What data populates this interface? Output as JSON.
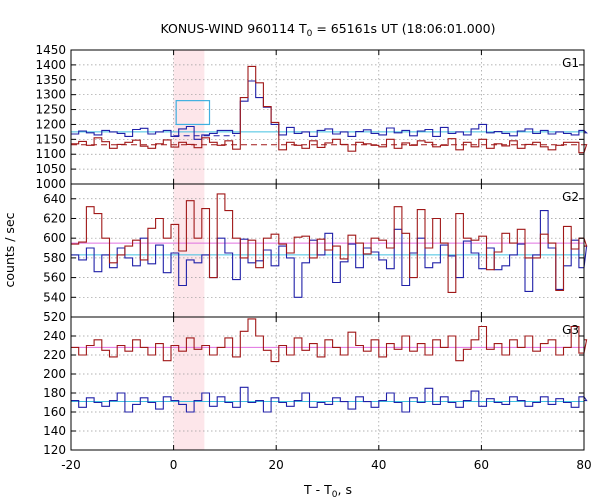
{
  "chart_data": {
    "type": "line",
    "title": {
      "text": "KONUS-WIND 960114 T",
      "sub": "0",
      "rest": " = 65161s UT (18:06:01.000)"
    },
    "xlabel": {
      "text": "T - T",
      "sub": "0",
      "rest": ", s"
    },
    "ylabel": "counts / sec",
    "xlim": [
      -20,
      80
    ],
    "xticks": [
      -20,
      0,
      20,
      40,
      60,
      80
    ],
    "highlight_interval": [
      0,
      6
    ],
    "highlight_color": "#fde6ea",
    "grid": true,
    "bin_width": 1.5,
    "x_start": -20,
    "colors": {
      "blue": "#2020a8",
      "red": "#a01818",
      "blue_fit": "#40c0e0",
      "pink_fit": "#e070e0",
      "dark_blue_fit": "#2020a8",
      "dark_red_fit": "#a01818",
      "box": "#40b0e0"
    },
    "panels": [
      {
        "label": "G1",
        "ylim": [
          1000,
          1450
        ],
        "yticks": [
          1000,
          1050,
          1100,
          1150,
          1200,
          1250,
          1300,
          1350,
          1400,
          1450
        ],
        "fits": [
          {
            "level": 1175,
            "color": "blue_fit",
            "dash": false
          },
          {
            "level": 1132,
            "color": "dark_red_fit",
            "dash": true
          },
          {
            "level": 1162,
            "color": "dark_blue_fit",
            "dash": true,
            "x_from": 0,
            "x_to": 12
          }
        ],
        "box": {
          "x0": 0.5,
          "x1": 7,
          "top": 1280,
          "bottom": 1200,
          "color": "box"
        },
        "series": [
          {
            "color": "blue",
            "values": [
              1168,
              1178,
              1172,
              1165,
              1180,
              1175,
              1170,
              1160,
              1183,
              1187,
              1168,
              1175,
              1180,
              1160,
              1185,
              1193,
              1150,
              1165,
              1170,
              1180,
              1180,
              1170,
              1278,
              1346,
              1290,
              1258,
              1200,
              1165,
              1190,
              1170,
              1175,
              1160,
              1180,
              1185,
              1168,
              1175,
              1160,
              1176,
              1182,
              1170,
              1165,
              1188,
              1172,
              1180,
              1162,
              1178,
              1183,
              1160,
              1190,
              1170,
              1175,
              1165,
              1185,
              1200,
              1172,
              1176,
              1170,
              1162,
              1178,
              1185,
              1170,
              1180,
              1168,
              1175,
              1170,
              1165,
              1180,
              1172
            ]
          },
          {
            "color": "red",
            "values": [
              1135,
              1143,
              1130,
              1155,
              1142,
              1120,
              1133,
              1140,
              1147,
              1127,
              1120,
              1135,
              1148,
              1124,
              1140,
              1133,
              1122,
              1155,
              1140,
              1130,
              1145,
              1117,
              1290,
              1395,
              1340,
              1260,
              1207,
              1115,
              1140,
              1130,
              1120,
              1145,
              1123,
              1138,
              1150,
              1133,
              1110,
              1140,
              1135,
              1130,
              1125,
              1150,
              1120,
              1138,
              1130,
              1145,
              1140,
              1125,
              1130,
              1152,
              1115,
              1140,
              1125,
              1150,
              1120,
              1135,
              1128,
              1145,
              1120,
              1133,
              1140,
              1125,
              1115,
              1130,
              1140,
              1140,
              1105,
              1132
            ]
          }
        ]
      },
      {
        "label": "G2",
        "ylim": [
          520,
          655
        ],
        "yticks": [
          520,
          540,
          560,
          580,
          600,
          620,
          640
        ],
        "fits": [
          {
            "level": 583,
            "color": "blue_fit",
            "dash": false
          },
          {
            "level": 595,
            "color": "pink_fit",
            "dash": false
          }
        ],
        "series": [
          {
            "color": "blue",
            "values": [
              583,
              578,
              590,
              566,
              583,
              570,
              590,
              580,
              572,
              600,
              574,
              593,
              565,
              585,
              552,
              578,
              575,
              583,
              560,
              600,
              585,
              558,
              599,
              575,
              577,
              588,
              572,
              592,
              580,
              540,
              575,
              598,
              583,
              605,
              555,
              576,
              594,
              570,
              590,
              586,
              578,
              569,
              609,
              552,
              585,
              600,
              570,
              575,
              593,
              582,
              560,
              597,
              585,
              569,
              590,
              568,
              572,
              583,
              594,
              546,
              583,
              628,
              590,
              548,
              572,
              598,
              570,
              592
            ]
          },
          {
            "color": "red",
            "values": [
              594,
              596,
              632,
              625,
              600,
              575,
              583,
              592,
              598,
              578,
              610,
              620,
              600,
              614,
              587,
              638,
              600,
              630,
              560,
              645,
              628,
              600,
              580,
              598,
              570,
              600,
              604,
              594,
              585,
              601,
              602,
              580,
              599,
              588,
              592,
              579,
              603,
              595,
              584,
              600,
              598,
              590,
              632,
              605,
              560,
              629,
              590,
              620,
              595,
              545,
              625,
              600,
              598,
              602,
              568,
              586,
              605,
              595,
              609,
              580,
              580,
              604,
              595,
              547,
              612,
              589,
              600,
              592
            ]
          }
        ]
      },
      {
        "label": "G3",
        "ylim": [
          120,
          260
        ],
        "yticks": [
          120,
          140,
          160,
          180,
          200,
          220,
          240
        ],
        "fits": [
          {
            "level": 171,
            "color": "blue_fit",
            "dash": false
          },
          {
            "level": 228,
            "color": "pink_fit",
            "dash": false
          }
        ],
        "series": [
          {
            "color": "blue",
            "values": [
              172,
              165,
              175,
              170,
              166,
              172,
              180,
              160,
              168,
              175,
              170,
              163,
              176,
              172,
              168,
              160,
              172,
              180,
              166,
              176,
              170,
              165,
              186,
              170,
              172,
              160,
              175,
              170,
              166,
              172,
              180,
              165,
              170,
              168,
              175,
              171,
              163,
              176,
              171,
              165,
              172,
              180,
              170,
              160,
              175,
              170,
              185,
              168,
              176,
              170,
              165,
              172,
              182,
              166,
              174,
              170,
              168,
              176,
              172,
              166,
              170,
              176,
              168,
              174,
              170,
              165,
              176,
              172
            ]
          },
          {
            "color": "red",
            "values": [
              228,
              220,
              230,
              236,
              225,
              218,
              230,
              224,
              236,
              228,
              220,
              232,
              214,
              230,
              224,
              238,
              226,
              230,
              220,
              228,
              238,
              218,
              245,
              258,
              240,
              225,
              213,
              230,
              220,
              238,
              225,
              232,
              218,
              236,
              228,
              220,
              244,
              230,
              224,
              236,
              218,
              232,
              226,
              240,
              224,
              232,
              220,
              236,
              228,
              240,
              214,
              226,
              236,
              250,
              226,
              232,
              220,
              236,
              228,
              240,
              224,
              232,
              236,
              220,
              228,
              250,
              222,
              236
            ]
          }
        ]
      }
    ]
  }
}
